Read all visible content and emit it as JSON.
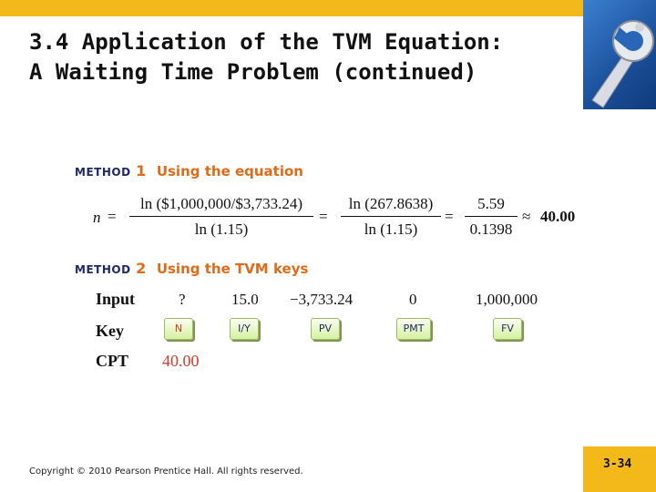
{
  "slide": {
    "title_line1": "3.4  Application of the TVM Equation:",
    "title_line2": "A Waiting Time Problem (continued)",
    "footer": "Copyright © 2010 Pearson Prentice Hall. All rights reserved.",
    "page_number": "3-34"
  },
  "method1": {
    "word": "METHOD",
    "number": "1",
    "title": "Using the equation",
    "lhs": "n",
    "eq1": "=",
    "frac1_num": "ln ($1,000,000/$3,733.24)",
    "frac1_den": "ln (1.15)",
    "eq2": "=",
    "frac2_num": "ln (267.8638)",
    "frac2_den": "ln (1.15)",
    "eq3": "=",
    "frac3_num": "5.59",
    "frac3_den": "0.1398",
    "approx": "≈",
    "result": "40.00"
  },
  "method2": {
    "word": "METHOD",
    "number": "2",
    "title": "Using the TVM keys",
    "row_input_label": "Input",
    "row_key_label": "Key",
    "row_cpt_label": "CPT",
    "inputs": [
      "?",
      "15.0",
      "−3,733.24",
      "0",
      "1,000,000"
    ],
    "keys": [
      "N",
      "I/Y",
      "PV",
      "PMT",
      "FV"
    ],
    "cpt_value": "40.00"
  },
  "colors": {
    "accent_bar": "#f3b81a",
    "method_orange": "#e06a18",
    "method_navy": "#1e2a66",
    "cpt_red": "#d23a2a",
    "key_green": "#d6f0a0"
  }
}
